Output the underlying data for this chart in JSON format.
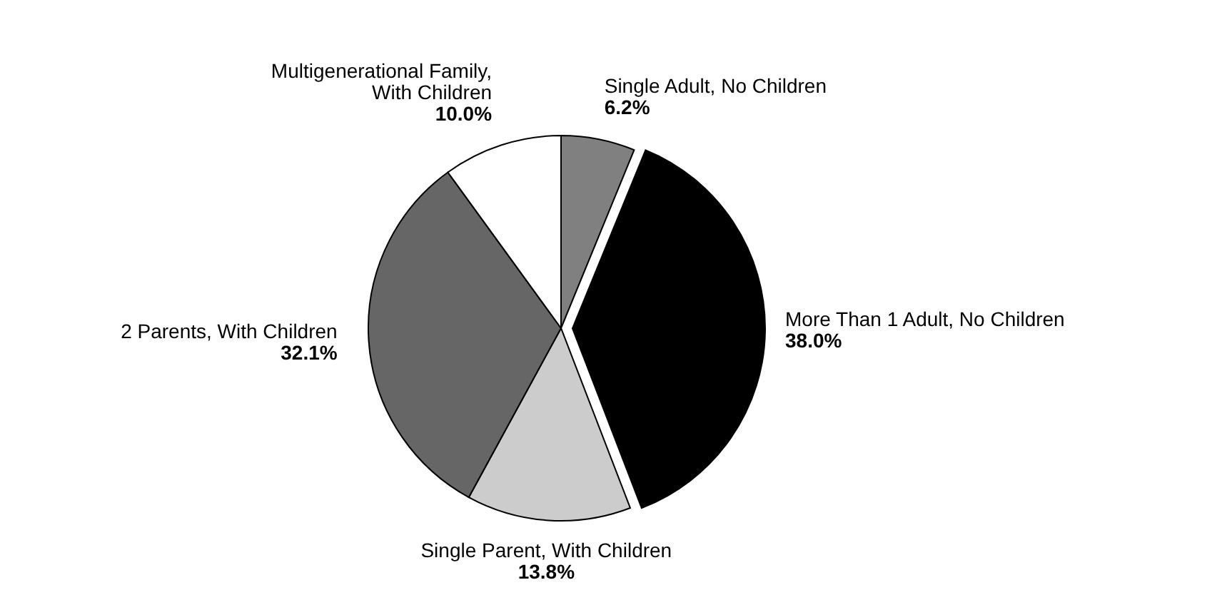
{
  "chart_data": {
    "type": "pie",
    "categories": [
      "Single Adult, No Children",
      "More Than 1 Adult, No Children",
      "Single Parent, With Children",
      "2 Parents, With Children",
      "Multigenerational Family, With Children"
    ],
    "values": [
      6.2,
      38.0,
      13.8,
      32.1,
      10.0
    ],
    "colors": [
      "#808080",
      "#000000",
      "#cccccc",
      "#666666",
      "#ffffff"
    ],
    "value_labels": [
      "6.2%",
      "38.0%",
      "13.8%",
      "32.1%",
      "10.0%"
    ]
  }
}
